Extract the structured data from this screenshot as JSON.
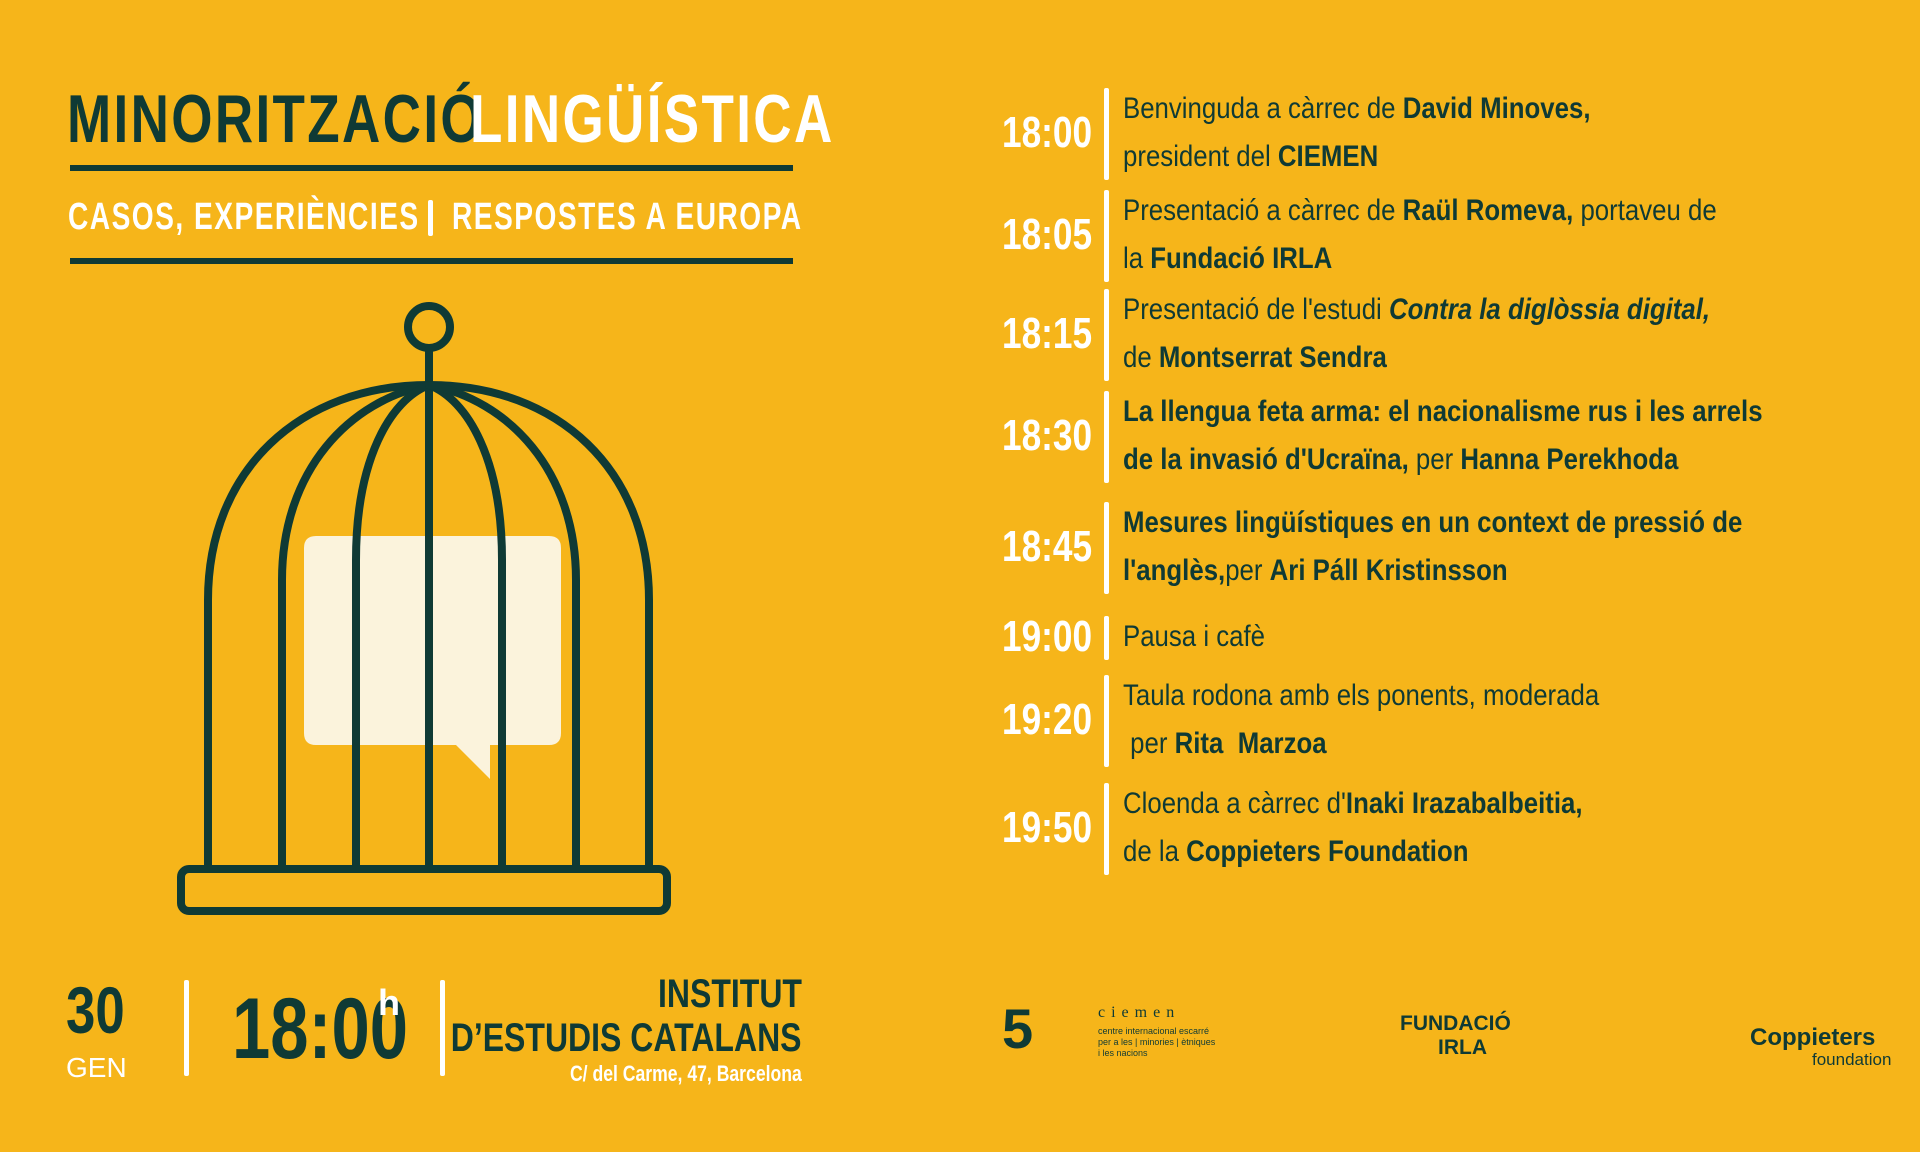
{
  "header": {
    "title": [
      "MINORITZACIÓ",
      "LINGÜÍSTICA"
    ],
    "subtitle": [
      "CASOS, EXPERIÈNCIES",
      "RESPOSTES A EUROPA"
    ]
  },
  "schedule": [
    {
      "time": "18:00",
      "lines": [
        [
          {
            "text": "Benvinguda a càrrec de "
          },
          {
            "text": "David Minoves,",
            "style": "bold"
          }
        ],
        [
          {
            "text": "president del "
          },
          {
            "text": "CIEMEN",
            "style": "bold"
          }
        ]
      ]
    },
    {
      "time": "18:05",
      "lines": [
        [
          {
            "text": "Presentació a càrrec de "
          },
          {
            "text": "Raül Romeva,",
            "style": "bold"
          },
          {
            "text": " portaveu de"
          }
        ],
        [
          {
            "text": "la "
          },
          {
            "text": "Fundació IRLA",
            "style": "bold"
          }
        ]
      ]
    },
    {
      "time": "18:15",
      "lines": [
        [
          {
            "text": "Presentació de l'estudi "
          },
          {
            "text": "Contra la diglòssia digital,",
            "style": "bold-italic"
          }
        ],
        [
          {
            "text": "de "
          },
          {
            "text": "Montserrat Sendra",
            "style": "bold"
          }
        ]
      ]
    },
    {
      "time": "18:30",
      "lines": [
        [
          {
            "text": "La llengua feta arma: el nacionalisme rus i les arrels",
            "style": "bold"
          }
        ],
        [
          {
            "text": "de la invasió d'Ucraïna,",
            "style": "bold"
          },
          {
            "text": " per "
          },
          {
            "text": "Hanna Perekhoda",
            "style": "bold"
          }
        ]
      ]
    },
    {
      "time": "18:45",
      "lines": [
        [
          {
            "text": "Mesures lingüístiques en un context de pressió de",
            "style": "bold"
          }
        ],
        [
          {
            "text": "l'anglès,",
            "style": "bold"
          },
          {
            "text": "per "
          },
          {
            "text": "Ari Páll Kristinsson",
            "style": "bold"
          }
        ]
      ]
    },
    {
      "time": "19:00",
      "lines": [
        [
          {
            "text": "Pausa i cafè"
          }
        ]
      ]
    },
    {
      "time": "19:20",
      "lines": [
        [
          {
            "text": "Taula rodona amb els ponents, moderada"
          }
        ],
        [
          {
            "text": " per "
          },
          {
            "text": "Rita  Marzoa",
            "style": "bold"
          }
        ]
      ]
    },
    {
      "time": "19:50",
      "lines": [
        [
          {
            "text": "Cloenda a càrrec d'"
          },
          {
            "text": "Inaki Irazabalbeitia,",
            "style": "bold"
          }
        ],
        [
          {
            "text": "de la "
          },
          {
            "text": "Coppieters Foundation",
            "style": "bold"
          }
        ]
      ]
    }
  ],
  "footer": {
    "day": "30",
    "month": "GEN",
    "time": "18:00",
    "time_suffix": "h",
    "venue": [
      "INSTITUT",
      "D’ESTUDIS CATALANS"
    ],
    "address": "C/ del Carme, 47, Barcelona"
  },
  "logos": {
    "ciemen": {
      "mark": "5",
      "name": "ciemen",
      "tagline": [
        "centre internacional escarré",
        "per a les | minories | ètniques",
        "i les nacions"
      ]
    },
    "irla": [
      "FUNDACIÓ",
      "IRLA"
    ],
    "coppieters": [
      "Coppieters",
      "foundation"
    ]
  }
}
